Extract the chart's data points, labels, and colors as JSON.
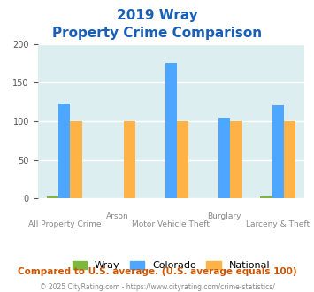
{
  "title_line1": "2019 Wray",
  "title_line2": "Property Crime Comparison",
  "categories": [
    "All Property Crime",
    "Arson",
    "Motor Vehicle Theft",
    "Burglary",
    "Larceny & Theft"
  ],
  "x_labels_top": [
    "",
    "Arson",
    "",
    "Burglary",
    ""
  ],
  "x_labels_bot": [
    "All Property Crime",
    "",
    "Motor Vehicle Theft",
    "",
    "Larceny & Theft"
  ],
  "series": {
    "Wray": [
      3,
      0,
      0,
      0,
      3
    ],
    "Colorado": [
      123,
      0,
      175,
      104,
      120
    ],
    "National": [
      100,
      100,
      100,
      100,
      100
    ]
  },
  "colors": {
    "Wray": "#7db83a",
    "Colorado": "#4da6ff",
    "National": "#ffb347"
  },
  "ylim": [
    0,
    200
  ],
  "yticks": [
    0,
    50,
    100,
    150,
    200
  ],
  "background_color": "#ddeef0",
  "plot_bg": "#ddeef0",
  "title_color": "#1a5fb4",
  "footer_text": "Compared to U.S. average. (U.S. average equals 100)",
  "footer_color": "#cc5500",
  "credit_text": "© 2025 CityRating.com - https://www.cityrating.com/crime-statistics/",
  "credit_color": "#888888",
  "grid_color": "#ffffff"
}
